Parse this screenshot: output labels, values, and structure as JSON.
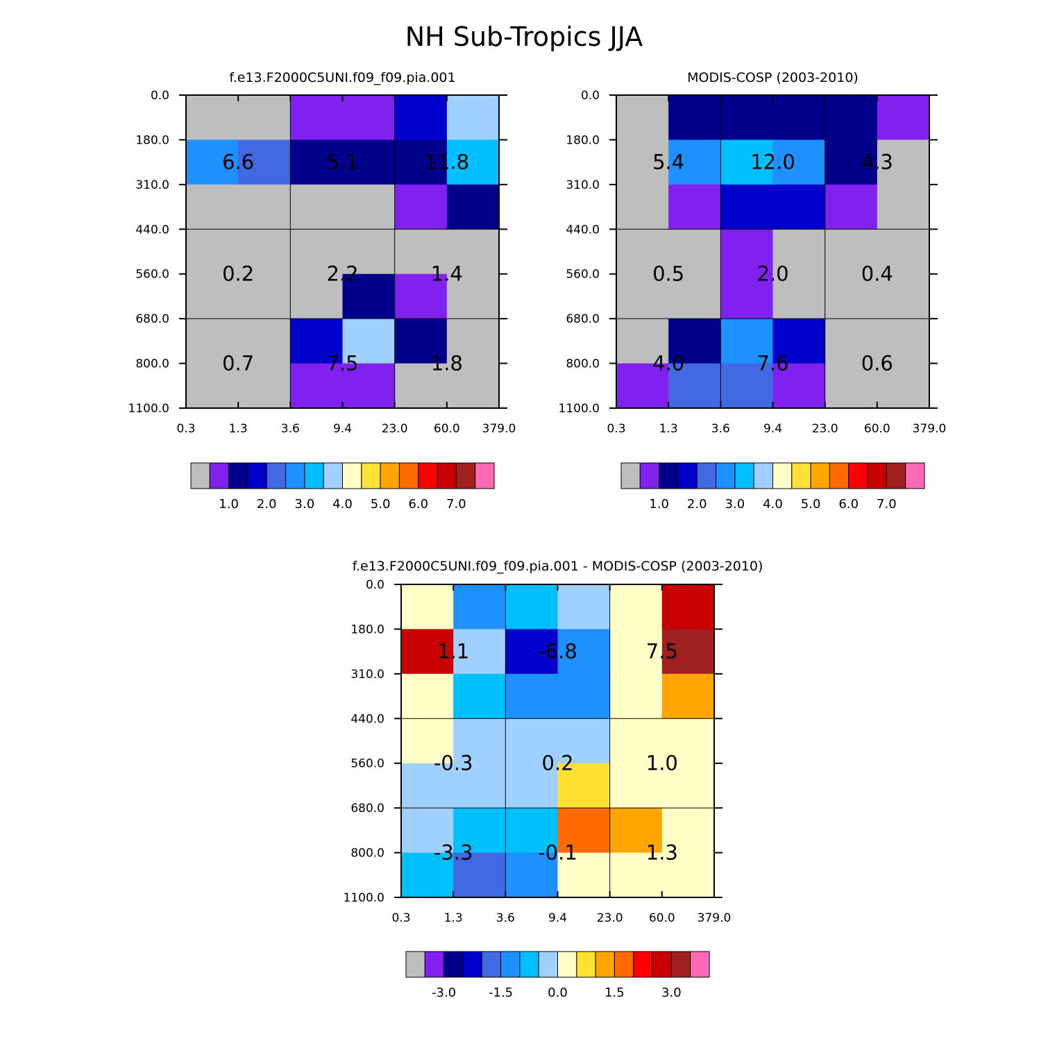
{
  "title": "NH Sub-Tropics JJA",
  "chart_data": [
    {
      "type": "heatmap",
      "title": "f.e13.F2000C5UNI.f09_f09.pia.001",
      "xlabel": "",
      "ylabel": "",
      "x_ticks": [
        "0.3",
        "1.3",
        "3.6",
        "9.4",
        "23.0",
        "60.0",
        "379.0"
      ],
      "y_ticks": [
        "0.0",
        "180.0",
        "310.0",
        "440.0",
        "560.0",
        "680.0",
        "800.0",
        "1100.0"
      ],
      "cell_colors": [
        [
          "#BEBEBE",
          "#BEBEBE",
          "#8021EF",
          "#8021EF",
          "#0000CD",
          "#A0D0FF"
        ],
        [
          "#1E90FF",
          "#4169E1",
          "#00008B",
          "#00008B",
          "#00008B",
          "#00BFFF"
        ],
        [
          "#BEBEBE",
          "#BEBEBE",
          "#BEBEBE",
          "#BEBEBE",
          "#8021EF",
          "#00008B"
        ],
        [
          "#BEBEBE",
          "#BEBEBE",
          "#BEBEBE",
          "#BEBEBE",
          "#BEBEBE",
          "#BEBEBE"
        ],
        [
          "#BEBEBE",
          "#BEBEBE",
          "#BEBEBE",
          "#00008B",
          "#8021EF",
          "#BEBEBE"
        ],
        [
          "#BEBEBE",
          "#BEBEBE",
          "#0000CD",
          "#A0D0FF",
          "#00008B",
          "#BEBEBE"
        ],
        [
          "#BEBEBE",
          "#BEBEBE",
          "#8021EF",
          "#8021EF",
          "#BEBEBE",
          "#BEBEBE"
        ]
      ],
      "block_sums": [
        [
          "6.6",
          "5.1",
          "11.8"
        ],
        [
          "0.2",
          "2.2",
          "1.4"
        ],
        [
          "0.7",
          "7.5",
          "1.8"
        ]
      ],
      "colorbar": {
        "colors": [
          "#BEBEBE",
          "#8021EF",
          "#00008B",
          "#0000CD",
          "#4169E1",
          "#1E90FF",
          "#00BFFF",
          "#A0D0FF",
          "#FFFFC8",
          "#FFE135",
          "#FFA500",
          "#FF6A00",
          "#FF0000",
          "#C80000",
          "#A02020",
          "#FF69B4"
        ],
        "labels": [
          "1.0",
          "2.0",
          "3.0",
          "4.0",
          "5.0",
          "6.0",
          "7.0"
        ],
        "label_boundaries": [
          2,
          4,
          6,
          8,
          10,
          12,
          14
        ]
      }
    },
    {
      "type": "heatmap",
      "title": "MODIS-COSP (2003-2010)",
      "xlabel": "",
      "ylabel": "",
      "x_ticks": [
        "0.3",
        "1.3",
        "3.6",
        "9.4",
        "23.0",
        "60.0",
        "379.0"
      ],
      "y_ticks": [
        "0.0",
        "180.0",
        "310.0",
        "440.0",
        "560.0",
        "680.0",
        "800.0",
        "1100.0"
      ],
      "cell_colors": [
        [
          "#BEBEBE",
          "#00008B",
          "#00008B",
          "#00008B",
          "#00008B",
          "#8021EF"
        ],
        [
          "#BEBEBE",
          "#1E90FF",
          "#00BFFF",
          "#1E90FF",
          "#00008B",
          "#BEBEBE"
        ],
        [
          "#BEBEBE",
          "#8021EF",
          "#0000CD",
          "#0000CD",
          "#8021EF",
          "#BEBEBE"
        ],
        [
          "#BEBEBE",
          "#BEBEBE",
          "#8021EF",
          "#BEBEBE",
          "#BEBEBE",
          "#BEBEBE"
        ],
        [
          "#BEBEBE",
          "#BEBEBE",
          "#8021EF",
          "#BEBEBE",
          "#BEBEBE",
          "#BEBEBE"
        ],
        [
          "#BEBEBE",
          "#00008B",
          "#1E90FF",
          "#0000CD",
          "#BEBEBE",
          "#BEBEBE"
        ],
        [
          "#8021EF",
          "#4169E1",
          "#4169E1",
          "#8021EF",
          "#BEBEBE",
          "#BEBEBE"
        ]
      ],
      "block_sums": [
        [
          "5.4",
          "12.0",
          "4.3"
        ],
        [
          "0.5",
          "2.0",
          "0.4"
        ],
        [
          "4.0",
          "7.6",
          "0.6"
        ]
      ],
      "colorbar": {
        "colors": [
          "#BEBEBE",
          "#8021EF",
          "#00008B",
          "#0000CD",
          "#4169E1",
          "#1E90FF",
          "#00BFFF",
          "#A0D0FF",
          "#FFFFC8",
          "#FFE135",
          "#FFA500",
          "#FF6A00",
          "#FF0000",
          "#C80000",
          "#A02020",
          "#FF69B4"
        ],
        "labels": [
          "1.0",
          "2.0",
          "3.0",
          "4.0",
          "5.0",
          "6.0",
          "7.0"
        ],
        "label_boundaries": [
          2,
          4,
          6,
          8,
          10,
          12,
          14
        ]
      }
    },
    {
      "type": "heatmap",
      "title": "f.e13.F2000C5UNI.f09_f09.pia.001 - MODIS-COSP (2003-2010)",
      "xlabel": "",
      "ylabel": "",
      "x_ticks": [
        "0.3",
        "1.3",
        "3.6",
        "9.4",
        "23.0",
        "60.0",
        "379.0"
      ],
      "y_ticks": [
        "0.0",
        "180.0",
        "310.0",
        "440.0",
        "560.0",
        "680.0",
        "800.0",
        "1100.0"
      ],
      "cell_colors": [
        [
          "#FFFFC8",
          "#1E90FF",
          "#00BFFF",
          "#A0D0FF",
          "#FFFFC8",
          "#C80000"
        ],
        [
          "#C80000",
          "#A0D0FF",
          "#0000CD",
          "#1E90FF",
          "#FFFFC8",
          "#A02020"
        ],
        [
          "#FFFFC8",
          "#00BFFF",
          "#1E90FF",
          "#1E90FF",
          "#FFFFC8",
          "#FFA500"
        ],
        [
          "#FFFFC8",
          "#A0D0FF",
          "#A0D0FF",
          "#A0D0FF",
          "#FFFFC8",
          "#FFFFC8"
        ],
        [
          "#A0D0FF",
          "#A0D0FF",
          "#A0D0FF",
          "#FFE135",
          "#FFFFC8",
          "#FFFFC8"
        ],
        [
          "#A0D0FF",
          "#00BFFF",
          "#00BFFF",
          "#FF6A00",
          "#FFA500",
          "#FFFFC8"
        ],
        [
          "#00BFFF",
          "#4169E1",
          "#1E90FF",
          "#FFFFC8",
          "#FFFFC8",
          "#FFFFC8"
        ]
      ],
      "block_sums": [
        [
          "1.1",
          "-6.8",
          "7.5"
        ],
        [
          "-0.3",
          "0.2",
          "1.0"
        ],
        [
          "-3.3",
          "-0.1",
          "1.3"
        ]
      ],
      "colorbar": {
        "colors": [
          "#BEBEBE",
          "#8021EF",
          "#00008B",
          "#0000CD",
          "#4169E1",
          "#1E90FF",
          "#00BFFF",
          "#A0D0FF",
          "#FFFFC8",
          "#FFE135",
          "#FFA500",
          "#FF6A00",
          "#FF0000",
          "#C80000",
          "#A02020",
          "#FF69B4"
        ],
        "labels": [
          "-3.0",
          "-1.5",
          "0.0",
          "1.5",
          "3.0"
        ],
        "label_boundaries": [
          2,
          5,
          8,
          11,
          14
        ]
      }
    }
  ]
}
